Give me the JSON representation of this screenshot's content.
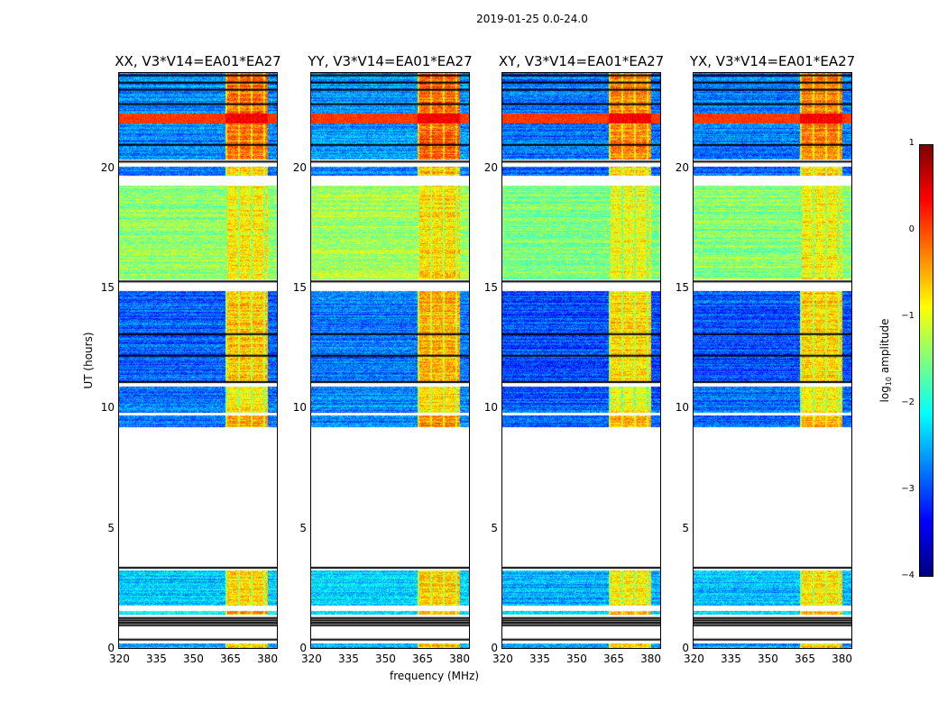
{
  "chart_data": {
    "type": "heatmap",
    "title": "2019-01-25 0.0-24.0",
    "xlabel": "frequency (MHz)",
    "ylabel": "UT (hours)",
    "xlim": [
      320,
      384
    ],
    "ylim": [
      0,
      24
    ],
    "xticks": [
      "320",
      "335",
      "350",
      "365",
      "380"
    ],
    "yticks": [
      "0",
      "5",
      "10",
      "15",
      "20"
    ],
    "panels": [
      {
        "title": "XX, V3*V14=EA01*EA27",
        "offset": 0.0
      },
      {
        "title": "YY, V3*V14=EA01*EA27",
        "offset": 0.1
      },
      {
        "title": "XY, V3*V14=EA01*EA27",
        "offset": -0.1
      },
      {
        "title": "YX, V3*V14=EA01*EA27",
        "offset": -0.05
      }
    ],
    "rfi_band_mhz": [
      363,
      380
    ],
    "segments_hours": [
      {
        "start": 0.0,
        "end": 0.2,
        "background": -2.6,
        "rfi": -0.6
      },
      {
        "start": 1.4,
        "end": 1.55,
        "background": -2.2,
        "rfi": -0.4
      },
      {
        "start": 1.75,
        "end": 3.25,
        "background": -2.4,
        "rfi": -0.7
      },
      {
        "start": 9.2,
        "end": 9.7,
        "background": -2.8,
        "rfi": -0.4
      },
      {
        "start": 9.8,
        "end": 10.9,
        "background": -2.8,
        "rfi": -0.8
      },
      {
        "start": 11.1,
        "end": 14.9,
        "background": -2.9,
        "rfi": -0.6
      },
      {
        "start": 15.4,
        "end": 19.3,
        "background": -1.4,
        "rfi": -0.8
      },
      {
        "start": 19.7,
        "end": 20.1,
        "background": -2.8,
        "rfi": -0.6
      },
      {
        "start": 20.4,
        "end": 24.0,
        "background": -2.7,
        "rfi": -0.2
      }
    ],
    "flagged_lines_hours": [
      0.35,
      0.95,
      1.05,
      1.15,
      1.25,
      3.35,
      11.1,
      12.2,
      13.1,
      15.3,
      20.3,
      21.0,
      22.7,
      23.3,
      23.6,
      23.9
    ],
    "strong_rows_hours": [
      {
        "start": 21.9,
        "end": 22.3,
        "level": 0.4
      }
    ],
    "colorbar": {
      "label": "log10 amplitude",
      "label_main": "log",
      "label_sub": "10",
      "label_rest": " amplitude",
      "range": [
        -4,
        1
      ],
      "ticks": [
        "1",
        "0",
        "−1",
        "−2",
        "−3",
        "−4"
      ],
      "colormap": "jet"
    }
  }
}
